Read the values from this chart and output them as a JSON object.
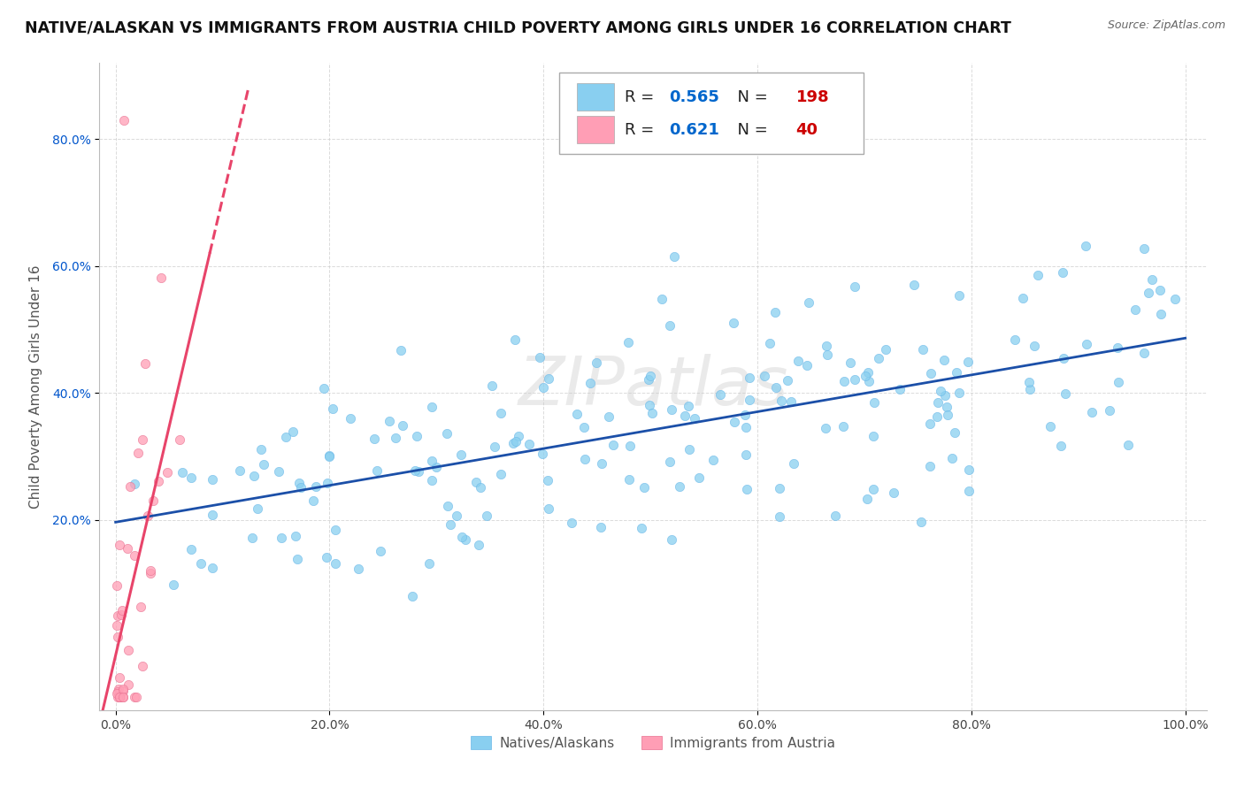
{
  "title": "NATIVE/ALASKAN VS IMMIGRANTS FROM AUSTRIA CHILD POVERTY AMONG GIRLS UNDER 16 CORRELATION CHART",
  "source": "Source: ZipAtlas.com",
  "ylabel": "Child Poverty Among Girls Under 16",
  "native_R": 0.565,
  "native_N": 198,
  "austria_R": 0.621,
  "austria_N": 40,
  "native_color": "#89CFF0",
  "austria_color": "#FF9EB5",
  "native_line_color": "#1B4FA8",
  "austria_line_color": "#E8446A",
  "background_color": "#ffffff",
  "plot_bg_color": "#ffffff",
  "grid_color": "#cccccc",
  "title_fontsize": 12.5,
  "axis_label_fontsize": 11,
  "tick_fontsize": 10,
  "legend_R_color": "#0066CC",
  "legend_N_color": "#CC0000"
}
